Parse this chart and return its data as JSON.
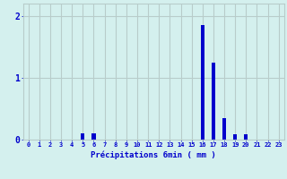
{
  "hours": [
    0,
    1,
    2,
    3,
    4,
    5,
    6,
    7,
    8,
    9,
    10,
    11,
    12,
    13,
    14,
    15,
    16,
    17,
    18,
    19,
    20,
    21,
    22,
    23
  ],
  "values": [
    0,
    0,
    0,
    0,
    0,
    0.1,
    0.1,
    0,
    0,
    0,
    0,
    0,
    0,
    0,
    0,
    0,
    1.85,
    1.25,
    0.35,
    0.08,
    0.08,
    0,
    0,
    0
  ],
  "bar_color": "#0000cc",
  "bg_color": "#d4f0ee",
  "grid_color": "#b8ccca",
  "axis_label_color": "#0000cc",
  "tick_color": "#0000cc",
  "xlabel": "Précipitations 6min ( mm )",
  "ylim": [
    0,
    2.2
  ],
  "yticks": [
    0,
    1,
    2
  ],
  "bar_width": 0.35
}
